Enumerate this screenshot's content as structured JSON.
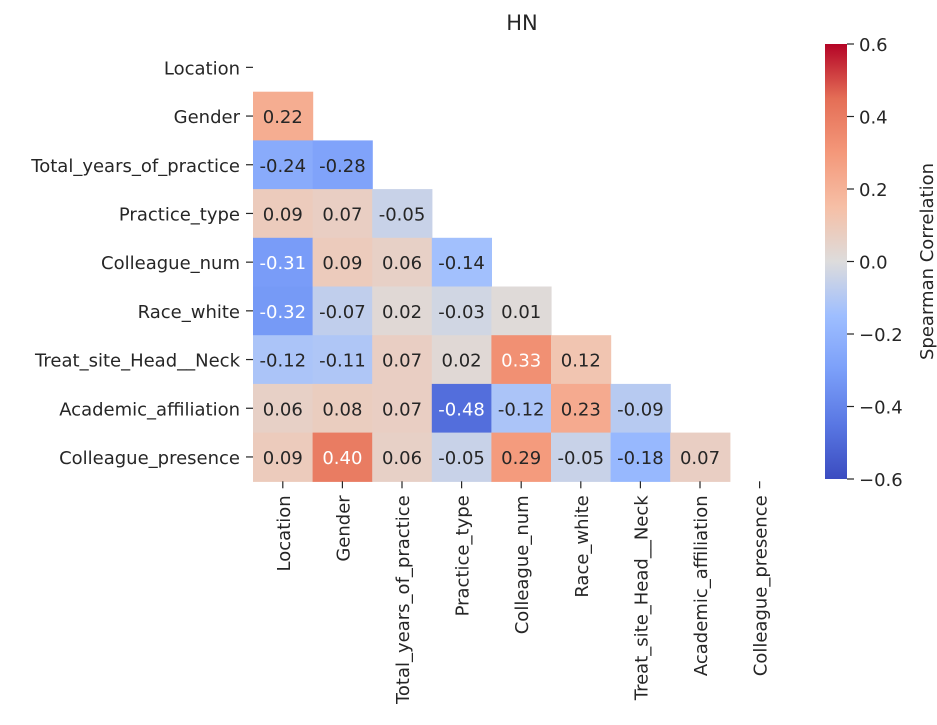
{
  "chart_data": {
    "type": "heatmap",
    "title": "HN",
    "xlabel": "",
    "ylabel": "",
    "variables": [
      "Location",
      "Gender",
      "Total_years_of_practice",
      "Practice_type",
      "Colleague_num",
      "Race_white",
      "Treat_site_Head__Neck",
      "Academic_affiliation",
      "Colleague_presence"
    ],
    "mask": "upper-triangle-including-diagonal",
    "values": [
      [
        null,
        null,
        null,
        null,
        null,
        null,
        null,
        null,
        null
      ],
      [
        0.22,
        null,
        null,
        null,
        null,
        null,
        null,
        null,
        null
      ],
      [
        -0.24,
        -0.28,
        null,
        null,
        null,
        null,
        null,
        null,
        null
      ],
      [
        0.09,
        0.07,
        -0.05,
        null,
        null,
        null,
        null,
        null,
        null
      ],
      [
        -0.31,
        0.09,
        0.06,
        -0.14,
        null,
        null,
        null,
        null,
        null
      ],
      [
        -0.32,
        -0.07,
        0.02,
        -0.03,
        0.01,
        null,
        null,
        null,
        null
      ],
      [
        -0.12,
        -0.11,
        0.07,
        0.02,
        0.33,
        0.12,
        null,
        null,
        null
      ],
      [
        0.06,
        0.08,
        0.07,
        -0.48,
        -0.12,
        0.23,
        -0.09,
        null,
        null
      ],
      [
        0.09,
        0.4,
        0.06,
        -0.05,
        0.29,
        -0.05,
        -0.18,
        0.07,
        null
      ]
    ],
    "colormap": "coolwarm",
    "vmin": -0.6,
    "vmax": 0.6,
    "colorbar": {
      "label": "Spearman Correlation",
      "ticks": [
        0.6,
        0.4,
        0.2,
        0.0,
        -0.2,
        -0.4,
        -0.6
      ],
      "tick_labels": [
        "0.6",
        "0.4",
        "0.2",
        "0.0",
        "−0.2",
        "−0.4",
        "−0.6"
      ]
    },
    "grid": false
  }
}
